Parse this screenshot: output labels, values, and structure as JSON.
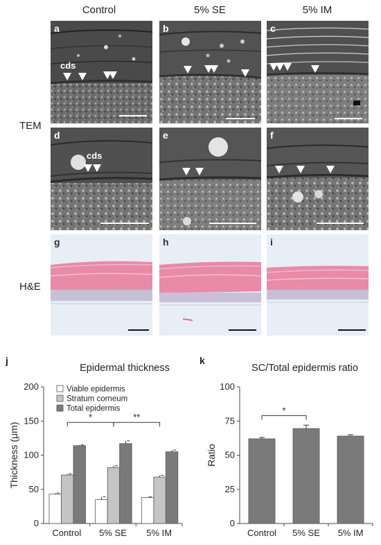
{
  "columns": [
    "Control",
    "5% SE",
    "5% IM"
  ],
  "rows": [
    "TEM",
    "H&E"
  ],
  "panels": {
    "a": "a",
    "b": "b",
    "c": "c",
    "d": "d",
    "e": "e",
    "f": "f",
    "g": "g",
    "h": "h",
    "i": "i"
  },
  "annotation_cds": "cds",
  "colors": {
    "viable": "#ffffff",
    "stratum": "#c4c4c4",
    "total": "#7a7a7a",
    "he_stain": "#e88aa8"
  },
  "chart_data": [
    {
      "letter": "j",
      "type": "bar",
      "title": "Epidermal thickness",
      "ylabel": "Thickness (μm)",
      "xlabel": "",
      "ylim": [
        0,
        200
      ],
      "yticks": [
        0,
        50,
        100,
        150,
        200
      ],
      "categories": [
        "Control",
        "5% SE",
        "5% IM"
      ],
      "legend_position": "top-left",
      "series": [
        {
          "name": "Viable epidermis",
          "values": [
            43,
            35,
            38
          ],
          "errors": [
            1.5,
            4,
            1
          ]
        },
        {
          "name": "Stratum corneum",
          "values": [
            71,
            82,
            68
          ],
          "errors": [
            1.5,
            2.5,
            2.5
          ]
        },
        {
          "name": "Total epidermis",
          "values": [
            114,
            117,
            105
          ],
          "errors": [
            1,
            4,
            2.5
          ]
        }
      ],
      "significance": [
        {
          "from": 0,
          "to": 1,
          "label": "*"
        },
        {
          "from": 1,
          "to": 2,
          "label": "**"
        }
      ]
    },
    {
      "letter": "k",
      "type": "bar",
      "title": "SC/Total epidermis ratio",
      "ylabel": "Ratio",
      "xlabel": "",
      "ylim": [
        0,
        100
      ],
      "yticks": [
        0,
        25,
        50,
        75,
        100
      ],
      "categories": [
        "Control",
        "5% SE",
        "5% IM"
      ],
      "series": [
        {
          "name": "",
          "values": [
            62,
            69.5,
            64
          ],
          "errors": [
            1,
            2.5,
            1
          ]
        }
      ],
      "significance": [
        {
          "from": 0,
          "to": 1,
          "label": "*"
        }
      ]
    }
  ]
}
